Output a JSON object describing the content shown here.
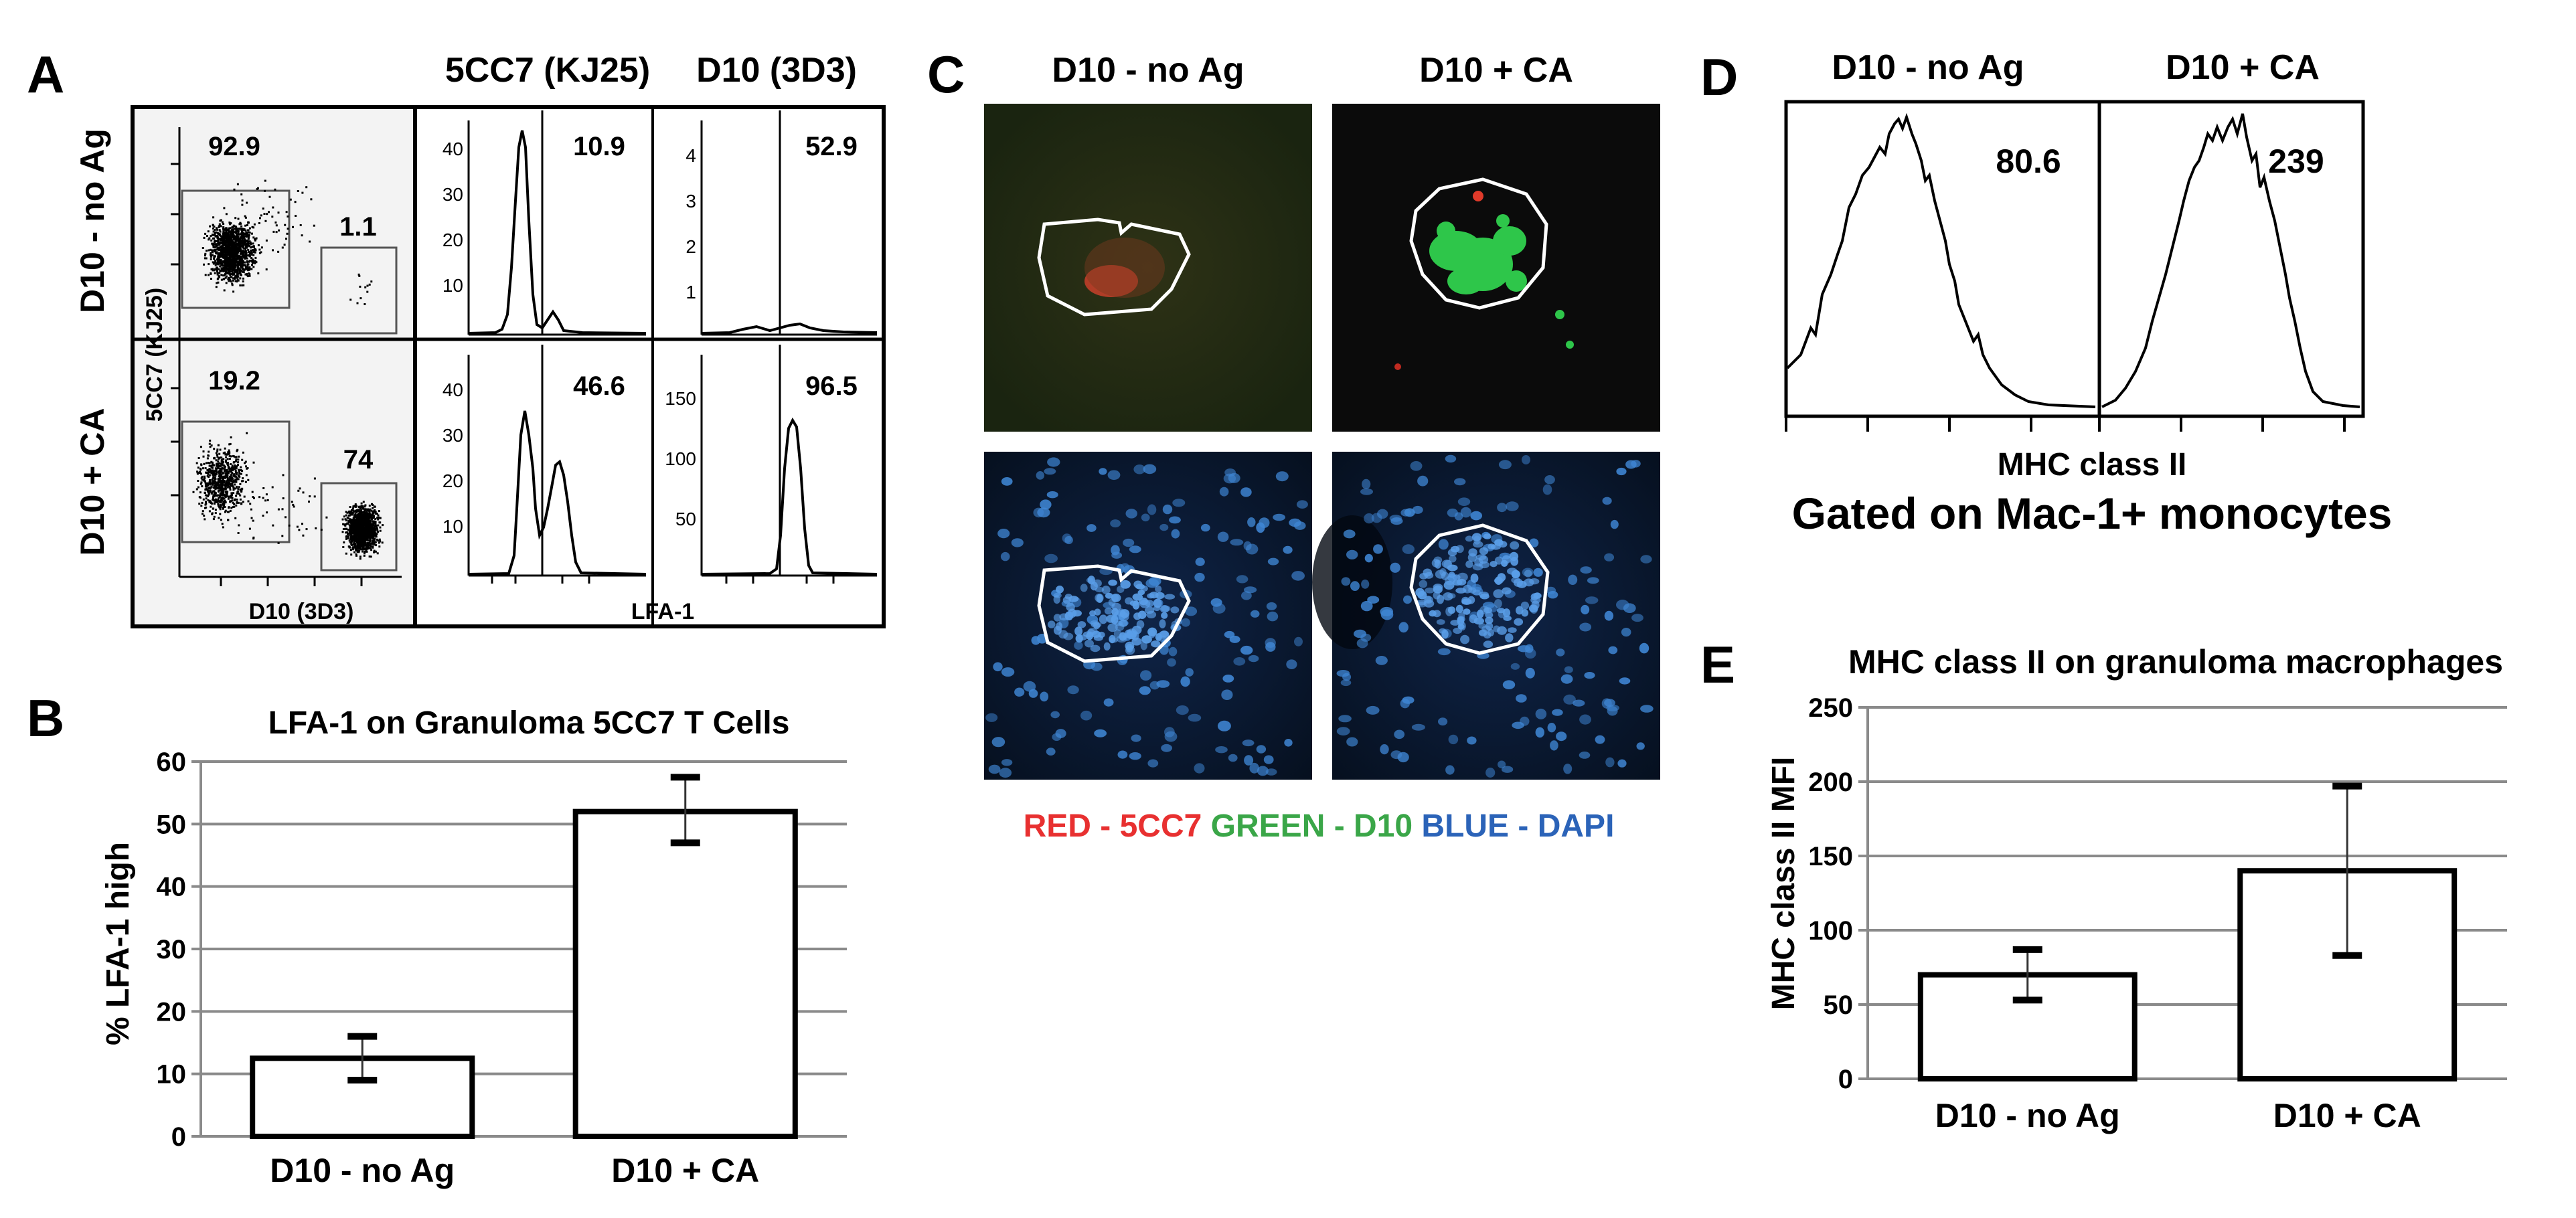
{
  "colors": {
    "ink": "#000000",
    "grid": "#8a8a8a",
    "panel_bg": "#f3f3f3",
    "red_label": "#e83030",
    "green_label": "#3aa648",
    "blue_label": "#2b63b8",
    "micro_dark": "#0a0a0a",
    "micro_red_bg": "#2a2a12",
    "micro_green_fluor": "#2ec64a",
    "micro_blue_bg": "#0b1730",
    "micro_blue_cell": "#3f86d4"
  },
  "panel_a": {
    "letter": "A",
    "col_header_1": "5CC7 (KJ25)",
    "col_header_2": "D10 (3D3)",
    "row_label_1": "D10 - no Ag",
    "row_label_2": "D10 + CA",
    "dot_ylabel": "5CC7 (KJ25)",
    "dot_xlabel": "D10 (3D3)",
    "hist_xlabel": "LFA-1",
    "dot_top": {
      "gate_left": "92.9",
      "gate_right": "1.1"
    },
    "dot_bottom": {
      "gate_left": "19.2",
      "gate_right": "74"
    },
    "hist_kj25_top": {
      "value": "10.9",
      "ticks": [
        "40",
        "30",
        "20",
        "10"
      ]
    },
    "hist_kj25_bottom": {
      "value": "46.6",
      "ticks": [
        "40",
        "30",
        "20",
        "10"
      ]
    },
    "hist_3d3_top": {
      "value": "52.9",
      "ticks": [
        "4",
        "3",
        "2",
        "1"
      ]
    },
    "hist_3d3_bottom": {
      "value": "96.5",
      "ticks": [
        "150",
        "100",
        "50"
      ]
    }
  },
  "panel_b": {
    "letter": "B",
    "title": "LFA-1 on Granuloma 5CC7 T Cells",
    "chart_data": {
      "type": "bar",
      "title": "LFA-1 on Granuloma 5CC7 T Cells",
      "xlabel": "",
      "ylabel": "% LFA-1 high",
      "categories": [
        "D10 - no Ag",
        "D10 + CA"
      ],
      "values": [
        12.5,
        52
      ],
      "error_low": [
        9,
        47
      ],
      "error_high": [
        16,
        57.5
      ],
      "ylim": [
        0,
        60
      ],
      "yticks": [
        0,
        10,
        20,
        30,
        40,
        50,
        60
      ],
      "grid": true
    }
  },
  "panel_c": {
    "letter": "C",
    "col_header_1": "D10 - no Ag",
    "col_header_2": "D10 + CA",
    "legend_red": "RED - 5CC7",
    "legend_green": "GREEN - D10",
    "legend_blue": "BLUE - DAPI"
  },
  "panel_d": {
    "letter": "D",
    "col_header_1": "D10 - no Ag",
    "col_header_2": "D10 + CA",
    "value_1": "80.6",
    "value_2": "239",
    "xlabel": "MHC class II",
    "caption": "Gated on Mac-1+ monocytes"
  },
  "panel_e": {
    "letter": "E",
    "title": "MHC class II on granuloma macrophages",
    "chart_data": {
      "type": "bar",
      "title": "MHC class II on granuloma macrophages",
      "xlabel": "",
      "ylabel": "MHC class II MFI",
      "categories": [
        "D10 - no Ag",
        "D10 + CA"
      ],
      "values": [
        70,
        140
      ],
      "error_low": [
        53,
        83
      ],
      "error_high": [
        87,
        197
      ],
      "ylim": [
        0,
        250
      ],
      "yticks": [
        0,
        50,
        100,
        150,
        200,
        250
      ],
      "grid": true
    }
  }
}
